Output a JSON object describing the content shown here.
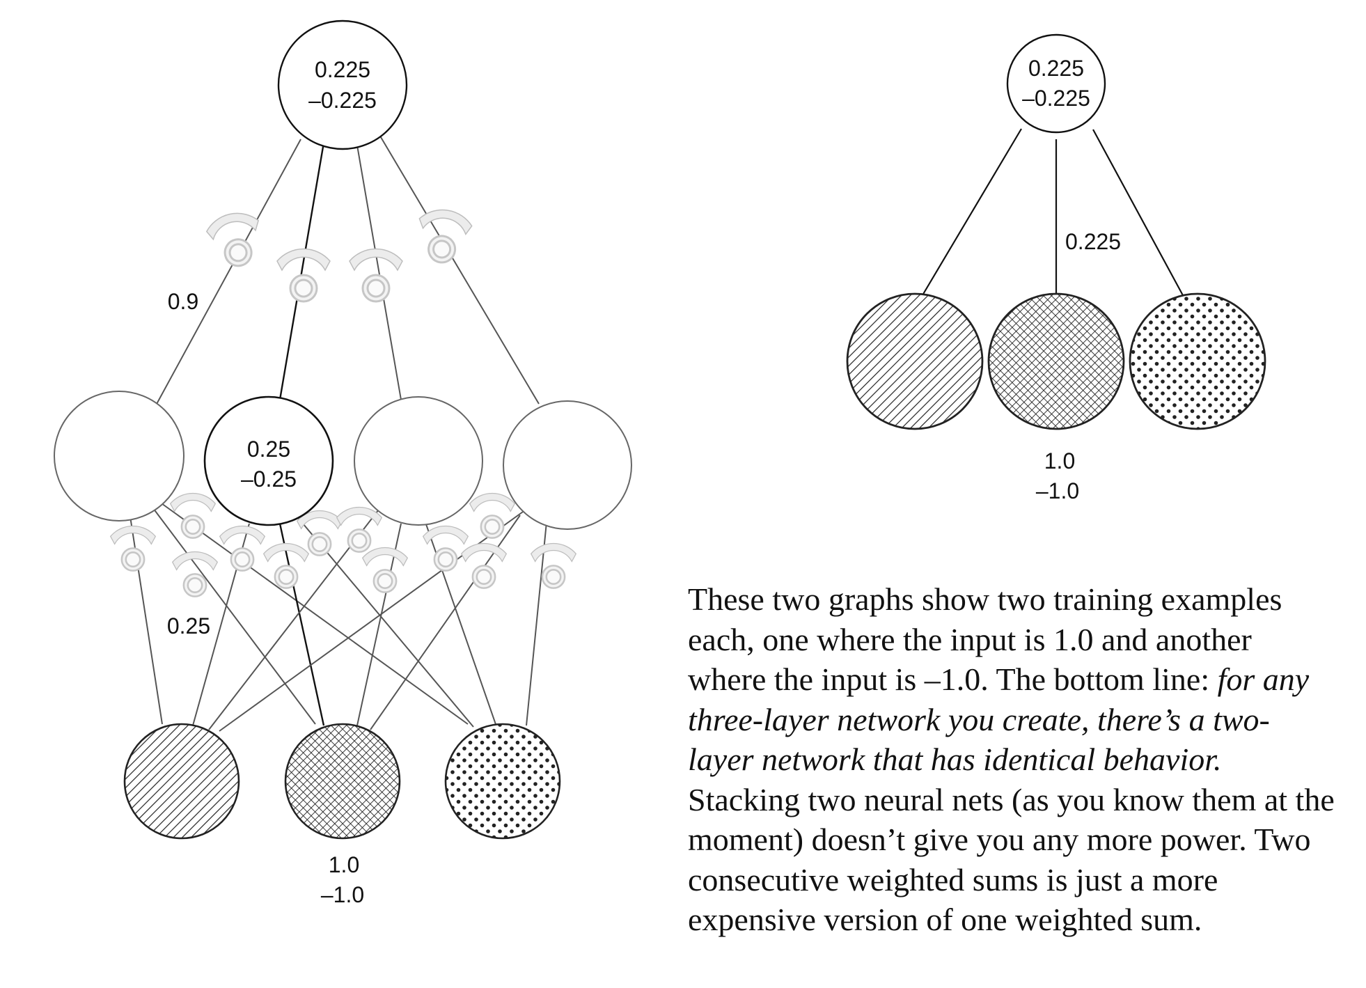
{
  "left_diagram": {
    "output_node": {
      "line1": "0.225",
      "line2": "–0.225"
    },
    "hidden_node_2": {
      "line1": "0.25",
      "line2": "–0.25"
    },
    "weight_label_top": "0.9",
    "weight_label_bottom": "0.25",
    "input_label": {
      "line1": "1.0",
      "line2": "–1.0"
    }
  },
  "right_diagram": {
    "output_node": {
      "line1": "0.225",
      "line2": "–0.225"
    },
    "weight_label": "0.225",
    "input_label": {
      "line1": "1.0",
      "line2": "–1.0"
    }
  },
  "caption": {
    "text_normal": "These two graphs show two training examples each, one where the input is 1.0 and another where the input is –1.0. The bottom line: ",
    "text_italic": "for any three-layer network you create, there’s a two-layer network that has identical behavior.",
    "text_end": " Stacking two neural nets (as you know them at the moment) doesn’t give you any more power. Two consecutive weighted sums is just a more expensive version of one weighted sum."
  }
}
